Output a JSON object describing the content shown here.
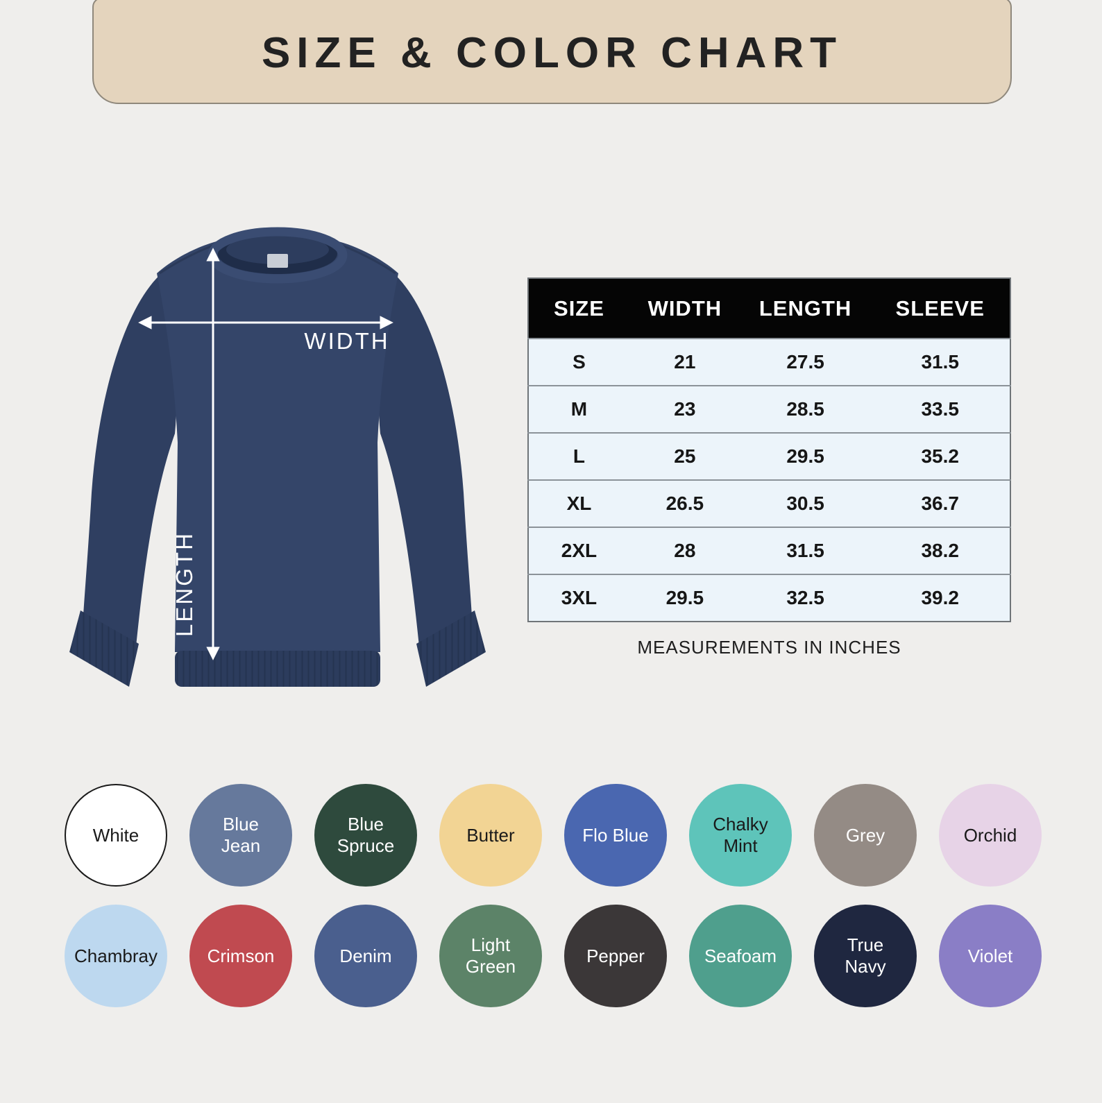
{
  "header": {
    "title": "SIZE & COLOR CHART",
    "background": "#e4d4bd"
  },
  "diagram": {
    "garment": "navy crewneck sweatshirt",
    "garment_color": "#344569",
    "width_label": "WIDTH",
    "length_label": "LENGTH"
  },
  "chart_data": {
    "type": "table",
    "title": "SIZE & COLOR CHART",
    "columns": [
      "SIZE",
      "WIDTH",
      "LENGTH",
      "SLEEVE"
    ],
    "rows": [
      [
        "S",
        "21",
        "27.5",
        "31.5"
      ],
      [
        "M",
        "23",
        "28.5",
        "33.5"
      ],
      [
        "L",
        "25",
        "29.5",
        "35.2"
      ],
      [
        "XL",
        "26.5",
        "30.5",
        "36.7"
      ],
      [
        "2XL",
        "28",
        "31.5",
        "38.2"
      ],
      [
        "3XL",
        "29.5",
        "32.5",
        "39.2"
      ]
    ],
    "note": "MEASUREMENTS IN INCHES"
  },
  "colors": {
    "swatches": [
      {
        "name": "White",
        "hex": "#ffffff",
        "text": "#1a1a1a",
        "border": "#1a1a1a"
      },
      {
        "name": "Blue Jean",
        "hex": "#66799c",
        "text": "#ffffff"
      },
      {
        "name": "Blue Spruce",
        "hex": "#2e4a3d",
        "text": "#ffffff"
      },
      {
        "name": "Butter",
        "hex": "#f2d494",
        "text": "#1a1a1a"
      },
      {
        "name": "Flo Blue",
        "hex": "#4a67b0",
        "text": "#ffffff"
      },
      {
        "name": "Chalky Mint",
        "hex": "#5ec4ba",
        "text": "#1a1a1a"
      },
      {
        "name": "Grey",
        "hex": "#948b85",
        "text": "#ffffff"
      },
      {
        "name": "Orchid",
        "hex": "#e7d3e7",
        "text": "#1a1a1a"
      },
      {
        "name": "Chambray",
        "hex": "#bdd8ef",
        "text": "#1a1a1a"
      },
      {
        "name": "Crimson",
        "hex": "#c04a50",
        "text": "#ffffff"
      },
      {
        "name": "Denim",
        "hex": "#4a5f8e",
        "text": "#ffffff"
      },
      {
        "name": "Light Green",
        "hex": "#5c8368",
        "text": "#ffffff"
      },
      {
        "name": "Pepper",
        "hex": "#3b3738",
        "text": "#ffffff"
      },
      {
        "name": "Seafoam",
        "hex": "#4f9f8d",
        "text": "#ffffff"
      },
      {
        "name": "True Navy",
        "hex": "#1f2740",
        "text": "#ffffff"
      },
      {
        "name": "Violet",
        "hex": "#8a7ec6",
        "text": "#ffffff"
      }
    ]
  }
}
